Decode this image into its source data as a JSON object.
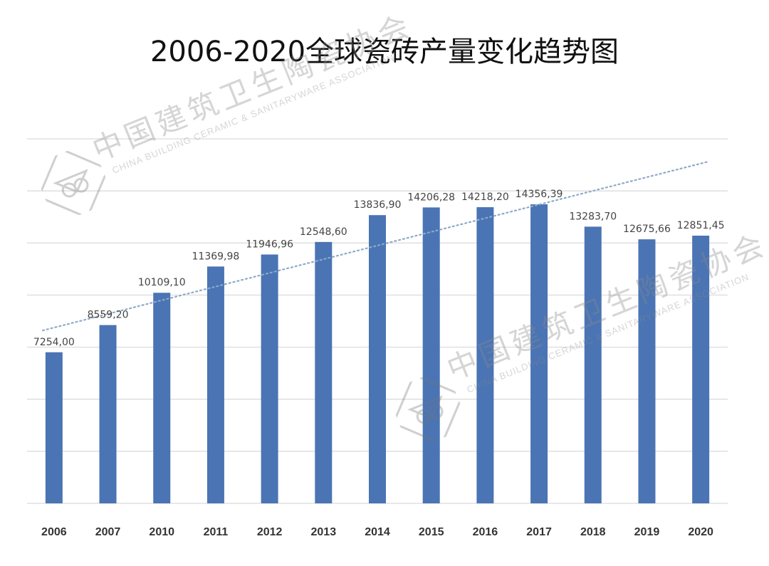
{
  "chart_data": {
    "type": "bar",
    "title": "2006-2020全球瓷砖产量变化趋势图",
    "xlabel": "",
    "ylabel": "",
    "ylim": [
      0,
      17500
    ],
    "grid": true,
    "categories": [
      "2006",
      "2007",
      "2010",
      "2011",
      "2012",
      "2013",
      "2014",
      "2015",
      "2016",
      "2017",
      "2018",
      "2019",
      "2020"
    ],
    "values": [
      7254.0,
      8559.2,
      10109.1,
      11369.98,
      11946.96,
      12548.6,
      13836.9,
      14206.28,
      14218.2,
      14356.39,
      13283.7,
      12675.66,
      12851.45
    ],
    "value_labels": [
      "7254,00",
      "8559,20",
      "10109,10",
      "11369,98",
      "11946,96",
      "12548,60",
      "13836,90",
      "14206,28",
      "14218,20",
      "14356,39",
      "13283,70",
      "12675,66",
      "12851,45"
    ],
    "trendline": {
      "style": "dotted",
      "start_value": 8300,
      "end_value": 16400
    },
    "bar_color": "#4a74b4",
    "grid_color": "#d9d9d9",
    "trend_color": "#8ea9c8"
  },
  "watermark": {
    "org_cn": "中国建筑卫生陶瓷协会",
    "org_en": "CHINA BUILDING CERAMIC & SANITARYWARE ASSOCIATION"
  }
}
